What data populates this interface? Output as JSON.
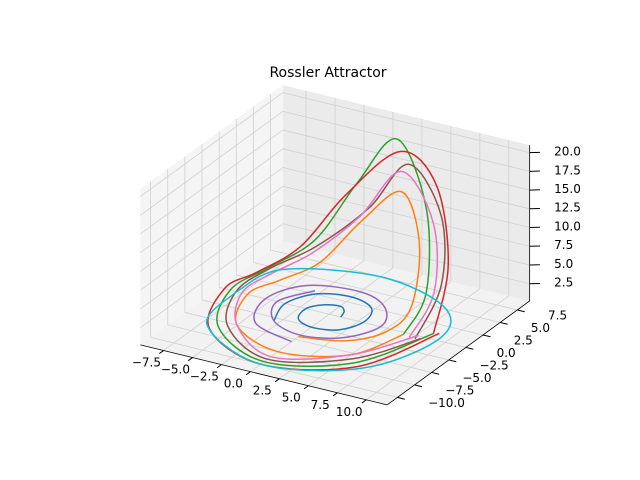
{
  "chart_data": {
    "type": "line3d",
    "title": "Rossler Attractor",
    "xlim": [
      -9.5,
      11.8
    ],
    "ylim": [
      -11.5,
      9.3
    ],
    "zlim": [
      0.2,
      21
    ],
    "xticks": [
      {
        "value": -7.5,
        "label": "−7.5"
      },
      {
        "value": -5,
        "label": "−5.0"
      },
      {
        "value": -2.5,
        "label": "−2.5"
      },
      {
        "value": 0,
        "label": "0.0"
      },
      {
        "value": 2.5,
        "label": "2.5"
      },
      {
        "value": 5,
        "label": "5.0"
      },
      {
        "value": 7.5,
        "label": "7.5"
      },
      {
        "value": 10,
        "label": "10.0"
      }
    ],
    "yticks": [
      {
        "value": -10,
        "label": "−10.0"
      },
      {
        "value": -7.5,
        "label": "−7.5"
      },
      {
        "value": -5,
        "label": "−5.0"
      },
      {
        "value": -2.5,
        "label": "−2.5"
      },
      {
        "value": 0,
        "label": "0.0"
      },
      {
        "value": 2.5,
        "label": "2.5"
      },
      {
        "value": 5,
        "label": "5.0"
      },
      {
        "value": 7.5,
        "label": "7.5"
      }
    ],
    "zticks": [
      2.5,
      {
        "value": 5,
        "label": "5.0"
      },
      7.5,
      {
        "value": 10,
        "label": "10.0"
      },
      12.5,
      {
        "value": 15,
        "label": "15.0"
      },
      17.5,
      {
        "value": 20,
        "label": "20.0"
      }
    ],
    "grid": true,
    "series": [
      {
        "color": "#1f77b4",
        "x": [
          1,
          0.7,
          0,
          -1.2,
          -2,
          -1.6,
          0,
          2,
          3,
          2.3,
          0,
          -2.6,
          -3.8,
          -3
        ],
        "y": [
          0,
          1,
          1.6,
          1.2,
          0,
          -1.8,
          -2.6,
          -2,
          0,
          2.3,
          3.4,
          2.6,
          0,
          -3
        ],
        "z": [
          0.2,
          0.2,
          0.2,
          0.2,
          0.2,
          0.2,
          0.2,
          0.2,
          0.3,
          0.3,
          0.2,
          0.2,
          0.2,
          0.2
        ]
      },
      {
        "color": "#ff7f0e",
        "x": [
          0,
          3.5,
          5.5,
          6.5,
          6,
          3,
          -1,
          -4,
          -6,
          -7,
          -5,
          0,
          5,
          7
        ],
        "y": [
          -4.5,
          -3.5,
          -1,
          1,
          3,
          5.5,
          6.5,
          5.5,
          3,
          0,
          -5,
          -7.5,
          -5.5,
          -1
        ],
        "z": [
          0.2,
          0.3,
          0.6,
          3,
          10,
          14,
          8,
          2,
          0.5,
          0.3,
          0.2,
          0.2,
          0.3,
          0.8
        ]
      },
      {
        "color": "#2ca02c",
        "x": [
          7,
          7.5,
          6,
          2,
          -2,
          -5,
          -7.5,
          -8.5,
          -6,
          0,
          6,
          9
        ],
        "y": [
          -1,
          1.5,
          4,
          6.5,
          7.5,
          6.5,
          4,
          0,
          -6,
          -9.5,
          -6.5,
          0
        ],
        "z": [
          0.8,
          5,
          14,
          20,
          12,
          4,
          1,
          0.3,
          0.2,
          0.2,
          0.3,
          1
        ]
      },
      {
        "color": "#d62728",
        "x": [
          9,
          8.5,
          6,
          2,
          -3,
          -6,
          -8,
          -9,
          -6.5,
          0,
          6.5,
          9.5
        ],
        "y": [
          0,
          3,
          5.5,
          7,
          7.5,
          6,
          3,
          0,
          -6.5,
          -10,
          -7,
          0
        ],
        "z": [
          1,
          8,
          16,
          18,
          10,
          3,
          0.8,
          0.3,
          0.2,
          0.2,
          0.3,
          1.2
        ]
      },
      {
        "color": "#9467bd",
        "x": [
          -3,
          -4.5,
          -3,
          0,
          3,
          4.5,
          3,
          0,
          -4,
          -5.5,
          -4,
          0
        ],
        "y": [
          3,
          0,
          -3,
          -4.2,
          -3,
          0,
          3,
          4.5,
          3.5,
          0,
          -4,
          -5.5
        ],
        "z": [
          0.2,
          0.2,
          0.2,
          0.2,
          0.2,
          0.3,
          0.3,
          0.2,
          0.2,
          0.2,
          0.2,
          0.2
        ]
      },
      {
        "color": "#8c564b",
        "x": [
          8,
          8.5,
          7,
          3,
          -1,
          -5,
          -7.5,
          -8,
          -5.5,
          0,
          5.5,
          8.5
        ],
        "y": [
          -1,
          2,
          4.5,
          6.5,
          7.5,
          6.5,
          4,
          0,
          -5.5,
          -9,
          -6,
          -1
        ],
        "z": [
          0.6,
          6,
          13,
          17,
          9,
          3,
          0.8,
          0.3,
          0.2,
          0.2,
          0.3,
          0.8
        ]
      },
      {
        "color": "#e377c2",
        "x": [
          7.5,
          8,
          6.5,
          2.5,
          -1.5,
          -5,
          -7,
          -7.5,
          -5,
          0,
          5,
          8
        ],
        "y": [
          -1,
          1.8,
          4.2,
          6.3,
          7,
          6,
          3.5,
          0,
          -5,
          -8.5,
          -5.5,
          -0.5
        ],
        "z": [
          0.6,
          5,
          12,
          16,
          8,
          2.5,
          0.7,
          0.3,
          0.2,
          0.2,
          0.3,
          0.7
        ]
      },
      {
        "color": "#17becf",
        "x": [
          -8,
          -7,
          0,
          7,
          9.5,
          7,
          0,
          -7,
          -8
        ],
        "y": [
          0,
          -6,
          -10,
          -7,
          0,
          5,
          7.5,
          5,
          0
        ],
        "z": [
          0.2,
          0.2,
          0.2,
          0.3,
          0.5,
          0.4,
          0.2,
          0.2,
          0.2
        ]
      }
    ]
  }
}
